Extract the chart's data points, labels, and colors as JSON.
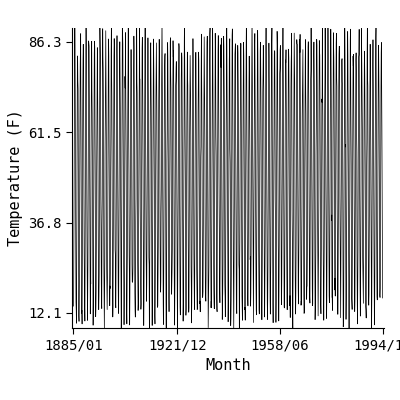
{
  "title": "",
  "xlabel": "Month",
  "ylabel": "Temperature (F)",
  "xlim_start_year": 1885,
  "xlim_start_month": 1,
  "xlim_end_year": 1994,
  "xlim_end_month": 12,
  "ylim": [
    8.0,
    90.0
  ],
  "yticks": [
    12.1,
    36.8,
    61.5,
    86.3
  ],
  "ytick_labels": [
    "12.1",
    "36.8",
    "61.5",
    "86.3"
  ],
  "xtick_positions_label": [
    {
      "year": 1885,
      "month": 1,
      "label": "1885/01"
    },
    {
      "year": 1921,
      "month": 12,
      "label": "1921/12"
    },
    {
      "year": 1958,
      "month": 6,
      "label": "1958/06"
    },
    {
      "year": 1994,
      "month": 12,
      "label": "1994/12"
    }
  ],
  "mean_temp": 49.0,
  "amplitude": 37.0,
  "noise_std": 4.0,
  "line_color": "#000000",
  "background_color": "#ffffff",
  "line_width": 0.5,
  "font_size": 10,
  "tick_label_size": 10,
  "figsize": [
    4.0,
    4.0
  ],
  "dpi": 100
}
